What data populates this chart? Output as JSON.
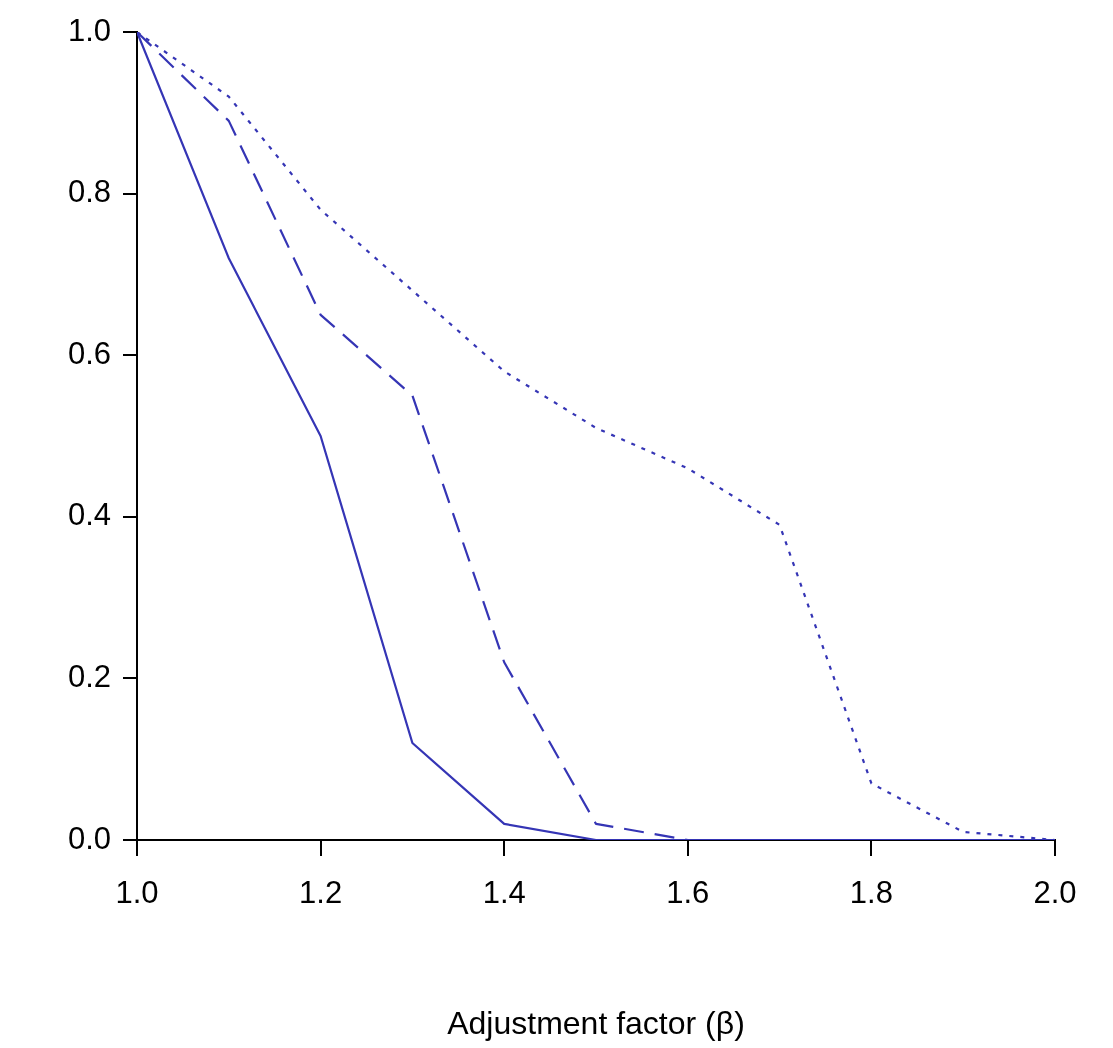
{
  "chart_data": {
    "type": "line",
    "xlabel": "Adjustment factor (β)",
    "x": [
      1.0,
      1.1,
      1.2,
      1.3,
      1.4,
      1.5,
      1.6,
      1.7,
      1.8,
      1.9,
      2.0
    ],
    "series": [
      {
        "color": "#3535b5",
        "line_style": "solid",
        "values": [
          1.0,
          0.72,
          0.5,
          0.12,
          0.02,
          0.0,
          0.0,
          0.0,
          0.0,
          0.0,
          0.0
        ]
      },
      {
        "color": "#3535b5",
        "line_style": "dashed",
        "values": [
          1.0,
          0.89,
          0.65,
          0.55,
          0.22,
          0.02,
          0.0,
          0.0,
          0.0,
          0.0,
          0.0
        ]
      },
      {
        "color": "#3535b5",
        "line_style": "dotted",
        "values": [
          1.0,
          0.92,
          0.78,
          0.68,
          0.58,
          0.51,
          0.46,
          0.39,
          0.07,
          0.01,
          0.0
        ]
      }
    ],
    "xlim": [
      1.0,
      2.0
    ],
    "xticks": [
      {
        "value": 1.0,
        "label": "1.0"
      },
      {
        "value": 1.2,
        "label": "1.2"
      },
      {
        "value": 1.4,
        "label": "1.4"
      },
      {
        "value": 1.6,
        "label": "1.6"
      },
      {
        "value": 1.8,
        "label": "1.8"
      },
      {
        "value": 2.0,
        "label": "2.0"
      }
    ],
    "ylim": [
      0.0,
      1.0
    ],
    "yticks": [
      {
        "value": 0.0,
        "label": "0.0"
      },
      {
        "value": 0.2,
        "label": "0.2"
      },
      {
        "value": 0.4,
        "label": "0.4"
      },
      {
        "value": 0.6,
        "label": "0.6"
      },
      {
        "value": 0.8,
        "label": "0.8"
      },
      {
        "value": 1.0,
        "label": "1.0"
      }
    ],
    "grid": false,
    "legend": false,
    "marker": "none"
  }
}
